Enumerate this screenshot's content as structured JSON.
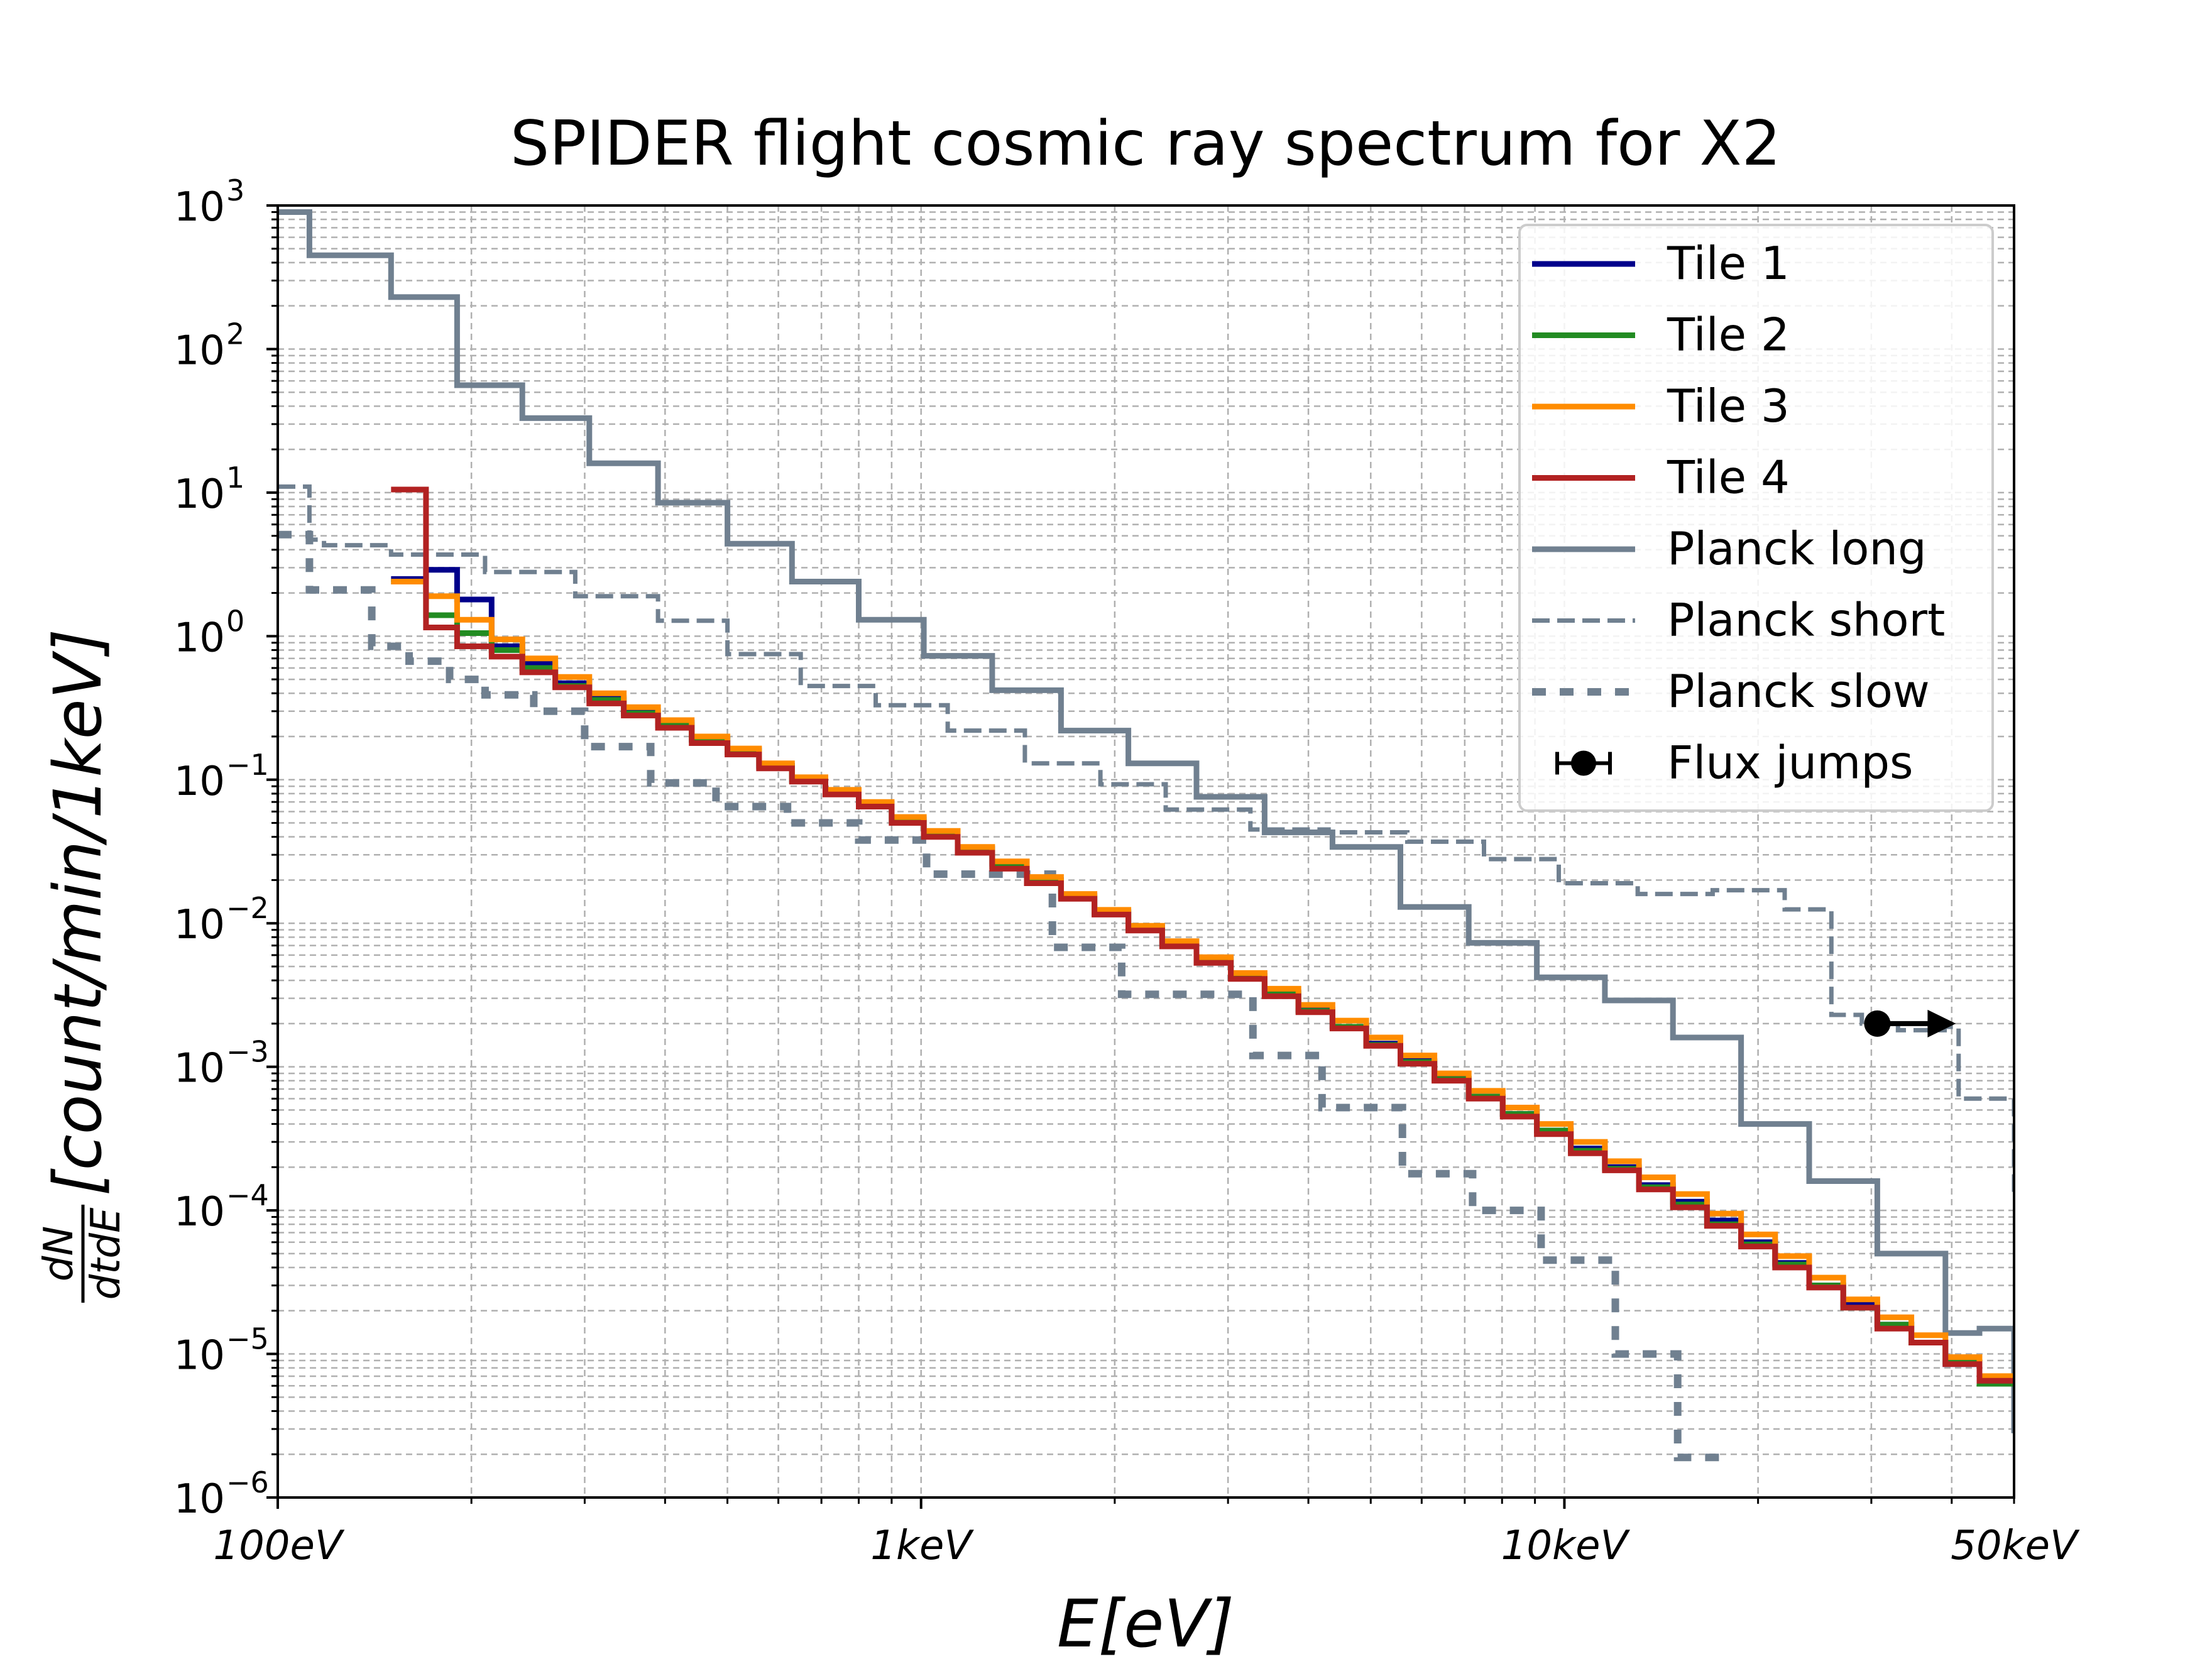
{
  "chart_data": {
    "type": "line",
    "subtype": "step",
    "title": "SPIDER flight cosmic ray spectrum for X2",
    "xlabel": "E[eV]",
    "ylabel": {
      "frac_num": "dN",
      "frac_den": "dtdE",
      "bracket": "[count/min/1keV]"
    },
    "xscale": "log",
    "yscale": "log",
    "xlim": [
      100,
      50000
    ],
    "ylim": [
      1e-06,
      1000
    ],
    "grid": true,
    "legend_position": "top-right",
    "x_ticks": [
      {
        "value": 100,
        "label": "100eV"
      },
      {
        "value": 1000,
        "label": "1keV"
      },
      {
        "value": 10000,
        "label": "10keV"
      },
      {
        "value": 50000,
        "label": "50keV"
      }
    ],
    "y_ticks": [
      {
        "value": 1000,
        "base": "10",
        "exp": "3"
      },
      {
        "value": 100,
        "base": "10",
        "exp": "2"
      },
      {
        "value": 10,
        "base": "10",
        "exp": "1"
      },
      {
        "value": 1,
        "base": "10",
        "exp": "0"
      },
      {
        "value": 0.1,
        "base": "10",
        "exp": "−1"
      },
      {
        "value": 0.01,
        "base": "10",
        "exp": "−2"
      },
      {
        "value": 0.001,
        "base": "10",
        "exp": "−3"
      },
      {
        "value": 0.0001,
        "base": "10",
        "exp": "−4"
      },
      {
        "value": 1e-05,
        "base": "10",
        "exp": "−5"
      },
      {
        "value": 1e-06,
        "base": "10",
        "exp": "−6"
      }
    ],
    "series": [
      {
        "name": "Tile 1",
        "color": "#00008b",
        "style": "solid",
        "edges": [
          150,
          170,
          190,
          215,
          240,
          270,
          305,
          345,
          390,
          440,
          500,
          560,
          630,
          710,
          800,
          900,
          1010,
          1140,
          1290,
          1460,
          1650,
          1860,
          2100,
          2370,
          2680,
          3030,
          3420,
          3860,
          4360,
          4920,
          5560,
          6280,
          7100,
          8020,
          9060,
          10230,
          11560,
          13060,
          14750,
          16660,
          18820,
          21260,
          24020,
          27130,
          30650,
          34620,
          39110,
          44180,
          50000
        ],
        "values": [
          2.5,
          2.9,
          1.8,
          0.85,
          0.65,
          0.47,
          0.37,
          0.3,
          0.25,
          0.19,
          0.16,
          0.125,
          0.1,
          0.083,
          0.068,
          0.053,
          0.043,
          0.033,
          0.026,
          0.02,
          0.0155,
          0.012,
          0.0093,
          0.0072,
          0.0056,
          0.0043,
          0.0033,
          0.0025,
          0.0019,
          0.00145,
          0.0011,
          0.00083,
          0.00062,
          0.00047,
          0.00036,
          0.00027,
          0.0002,
          0.00015,
          0.000115,
          8.5e-05,
          6e-05,
          4.3e-05,
          3e-05,
          2.2e-05,
          1.6e-05,
          1.2e-05,
          8.5e-06,
          6.5e-06
        ]
      },
      {
        "name": "Tile 2",
        "color": "#228b22",
        "style": "solid",
        "edges": [
          150,
          170,
          190,
          215,
          240,
          270,
          305,
          345,
          390,
          440,
          500,
          560,
          630,
          710,
          800,
          900,
          1010,
          1140,
          1290,
          1460,
          1650,
          1860,
          2100,
          2370,
          2680,
          3030,
          3420,
          3860,
          4360,
          4920,
          5560,
          6280,
          7100,
          8020,
          9060,
          10230,
          11560,
          13060,
          14750,
          16660,
          18820,
          21260,
          24020,
          27130,
          30650,
          34620,
          39110,
          44180,
          50000
        ],
        "values": [
          2.4,
          1.4,
          1.05,
          0.8,
          0.6,
          0.45,
          0.36,
          0.29,
          0.24,
          0.19,
          0.155,
          0.122,
          0.098,
          0.08,
          0.066,
          0.051,
          0.041,
          0.032,
          0.025,
          0.0195,
          0.015,
          0.0117,
          0.009,
          0.007,
          0.0054,
          0.0042,
          0.0032,
          0.00245,
          0.0019,
          0.00142,
          0.00108,
          0.00082,
          0.00062,
          0.00047,
          0.00036,
          0.00026,
          0.000195,
          0.000145,
          0.00011,
          8e-05,
          5.8e-05,
          4.2e-05,
          3e-05,
          2.1e-05,
          1.6e-05,
          1.2e-05,
          8.8e-06,
          6.2e-06
        ]
      },
      {
        "name": "Tile 3",
        "color": "#ff8c00",
        "style": "solid",
        "edges": [
          150,
          170,
          190,
          215,
          240,
          270,
          305,
          345,
          390,
          440,
          500,
          560,
          630,
          710,
          800,
          900,
          1010,
          1140,
          1290,
          1460,
          1650,
          1860,
          2100,
          2370,
          2680,
          3030,
          3420,
          3860,
          4360,
          4920,
          5560,
          6280,
          7100,
          8020,
          9060,
          10230,
          11560,
          13060,
          14750,
          16660,
          18820,
          21260,
          24020,
          27130,
          30650,
          34620,
          39110,
          44180,
          50000
        ],
        "values": [
          2.4,
          1.9,
          1.3,
          0.95,
          0.7,
          0.52,
          0.4,
          0.32,
          0.26,
          0.2,
          0.165,
          0.13,
          0.104,
          0.085,
          0.07,
          0.055,
          0.044,
          0.034,
          0.027,
          0.021,
          0.016,
          0.0124,
          0.0096,
          0.0075,
          0.0058,
          0.0045,
          0.0035,
          0.0027,
          0.0021,
          0.0016,
          0.0012,
          0.0009,
          0.00068,
          0.00052,
          0.0004,
          0.0003,
          0.00022,
          0.00017,
          0.00013,
          9.5e-05,
          6.8e-05,
          4.8e-05,
          3.4e-05,
          2.4e-05,
          1.8e-05,
          1.35e-05,
          9.5e-06,
          7e-06
        ]
      },
      {
        "name": "Tile 4",
        "color": "#b22222",
        "style": "solid",
        "edges": [
          150,
          170,
          190,
          215,
          240,
          270,
          305,
          345,
          390,
          440,
          500,
          560,
          630,
          710,
          800,
          900,
          1010,
          1140,
          1290,
          1460,
          1650,
          1860,
          2100,
          2370,
          2680,
          3030,
          3420,
          3860,
          4360,
          4920,
          5560,
          6280,
          7100,
          8020,
          9060,
          10230,
          11560,
          13060,
          14750,
          16660,
          18820,
          21260,
          24020,
          27130,
          30650,
          34620,
          39110,
          44180,
          50000
        ],
        "values": [
          10.5,
          1.15,
          0.85,
          0.72,
          0.56,
          0.44,
          0.34,
          0.28,
          0.23,
          0.18,
          0.15,
          0.12,
          0.097,
          0.079,
          0.065,
          0.05,
          0.04,
          0.031,
          0.024,
          0.019,
          0.0148,
          0.0115,
          0.0089,
          0.0069,
          0.0053,
          0.0041,
          0.0031,
          0.0024,
          0.00185,
          0.0014,
          0.00105,
          0.0008,
          0.0006,
          0.00045,
          0.00034,
          0.00025,
          0.00019,
          0.00014,
          0.000105,
          7.8e-05,
          5.6e-05,
          4e-05,
          2.9e-05,
          2.1e-05,
          1.5e-05,
          1.2e-05,
          8.5e-06,
          6.5e-06
        ]
      },
      {
        "name": "Planck long",
        "color": "#708090",
        "style": "solid",
        "edges": [
          100,
          112,
          150,
          190,
          240,
          305,
          390,
          500,
          630,
          800,
          1010,
          1290,
          1650,
          2100,
          2680,
          3420,
          4360,
          5560,
          7100,
          9060,
          11560,
          14750,
          18820,
          24020,
          30650,
          39110,
          44180,
          50000
        ],
        "values": [
          900,
          450,
          230,
          56,
          33,
          16,
          8.5,
          4.4,
          2.4,
          1.3,
          0.73,
          0.42,
          0.22,
          0.13,
          0.076,
          0.043,
          0.034,
          0.013,
          0.0073,
          0.0042,
          0.0029,
          0.0016,
          0.0004,
          0.00016,
          5e-05,
          1.4e-05,
          1.5e-05,
          2.8e-06
        ]
      },
      {
        "name": "Planck short",
        "color": "#708090",
        "style": "dashed",
        "edges": [
          100,
          112,
          118,
          150,
          210,
          290,
          390,
          500,
          650,
          850,
          1100,
          1450,
          1900,
          2400,
          3250,
          4300,
          5700,
          7500,
          9800,
          13000,
          17000,
          22000,
          26000,
          29000,
          33000,
          39000,
          41000,
          50000
        ],
        "values": [
          11,
          4.7,
          4.3,
          3.7,
          2.8,
          1.9,
          1.28,
          0.75,
          0.45,
          0.33,
          0.22,
          0.13,
          0.093,
          0.062,
          0.045,
          0.043,
          0.037,
          0.028,
          0.019,
          0.016,
          0.017,
          0.0125,
          0.0023,
          0.002,
          0.0018,
          0.0019,
          0.0006,
          0.00012
        ]
      },
      {
        "name": "Planck slow",
        "color": "#708090",
        "style": "dotted",
        "edges": [
          100,
          112,
          115,
          118,
          140,
          160,
          185,
          210,
          250,
          300,
          380,
          480,
          620,
          800,
          1020,
          1280,
          1600,
          2050,
          2400,
          3280,
          4200,
          5600,
          7200,
          9200,
          12000,
          15000,
          17400
        ],
        "values": [
          5.1,
          2.1,
          2.1,
          2.1,
          0.85,
          0.67,
          0.5,
          0.39,
          0.3,
          0.17,
          0.095,
          0.065,
          0.05,
          0.038,
          0.022,
          0.022,
          0.0068,
          0.0032,
          0.0032,
          0.0012,
          0.00052,
          0.00018,
          0.0001,
          4.5e-05,
          1e-05,
          1.9e-06,
          1.7e-06
        ]
      },
      {
        "name": "Flux jumps",
        "color": "#000000",
        "style": "errorbar",
        "x": 30650,
        "y": 0.002,
        "note": "lower limit (arrow to higher E)"
      }
    ]
  }
}
